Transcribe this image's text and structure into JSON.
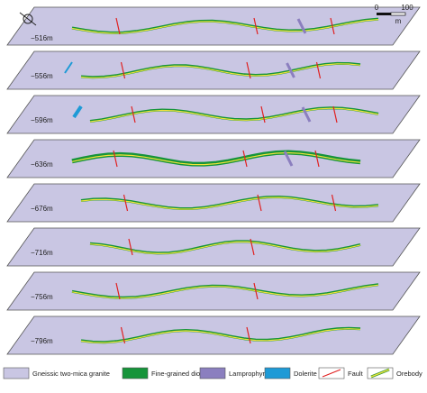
{
  "levels": [
    {
      "label": "−516m"
    },
    {
      "label": "−556m"
    },
    {
      "label": "−596m"
    },
    {
      "label": "−636m"
    },
    {
      "label": "−676m"
    },
    {
      "label": "−716m"
    },
    {
      "label": "−756m"
    },
    {
      "label": "−796m"
    }
  ],
  "scale_bar": {
    "start": "0",
    "end": "100",
    "unit": "m"
  },
  "legend": [
    {
      "label": "Gneissic two-mica granite"
    },
    {
      "label": "Fine-grained diorite"
    },
    {
      "label": "Lamprophyre"
    },
    {
      "label": "Dolerite"
    },
    {
      "label": "Fault"
    },
    {
      "label": "Orebody"
    }
  ]
}
